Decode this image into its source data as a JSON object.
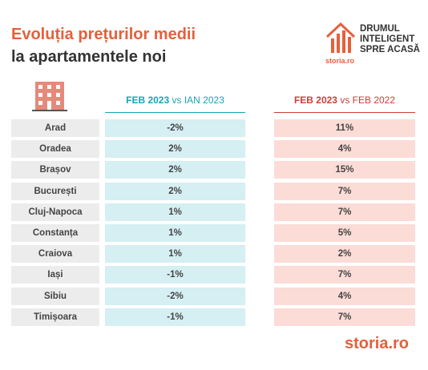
{
  "header": {
    "title_line1": "Evoluția prețurilor medii",
    "title_line2": "la apartamentele noi"
  },
  "logo": {
    "line1": "DRUMUL",
    "line2": "INTELIGENT",
    "line3": "SPRE ACASĂ",
    "brand": "storia.ro"
  },
  "table": {
    "columns": [
      {
        "bold": "FEB 2023",
        "rest": "vs IAN 2023"
      },
      {
        "bold": "FEB 2023",
        "rest": "vs FEB 2022"
      }
    ],
    "rows": [
      [
        "Arad",
        "-2%",
        "11%"
      ],
      [
        "Oradea",
        "2%",
        "4%"
      ],
      [
        "Brașov",
        "2%",
        "15%"
      ],
      [
        "București",
        "2%",
        "7%"
      ],
      [
        "Cluj-Napoca",
        "1%",
        "7%"
      ],
      [
        "Constanța",
        "1%",
        "5%"
      ],
      [
        "Craiova",
        "1%",
        "2%"
      ],
      [
        "Iași",
        "-1%",
        "7%"
      ],
      [
        "Sibiu",
        "-2%",
        "4%"
      ],
      [
        "Timișoara",
        "-1%",
        "7%"
      ]
    ]
  },
  "footer": {
    "brand": "storia.ro"
  }
}
